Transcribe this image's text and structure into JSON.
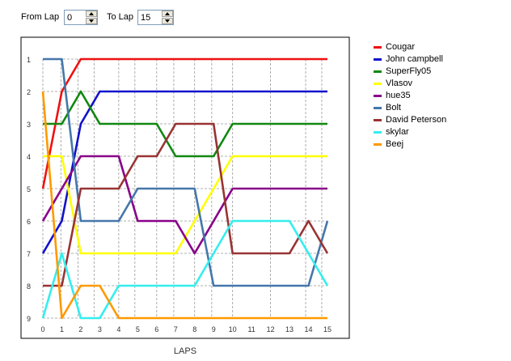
{
  "controls": {
    "from_label": "From Lap",
    "from_value": "0",
    "to_label": "To Lap",
    "to_value": "15"
  },
  "chart_data": {
    "type": "line",
    "xlabel": "LAPS",
    "ylabel": "",
    "x": [
      0,
      0.95,
      1.85,
      2.7,
      4,
      4.85,
      6,
      6.9,
      8,
      8.9,
      10,
      12,
      13.85,
      14.7
    ],
    "x_ticks": [
      0,
      1,
      2,
      3,
      4,
      5,
      6,
      7,
      8,
      9,
      10,
      11,
      12,
      13,
      14,
      15
    ],
    "y_ticks": [
      1,
      2,
      3,
      4,
      5,
      6,
      7,
      8,
      9
    ],
    "xlim": [
      0,
      15
    ],
    "ylim": [
      1,
      9
    ],
    "y_inverted": true,
    "grid": true,
    "legend_position": "right",
    "series": [
      {
        "name": "Cougar",
        "color": "#ee1111",
        "x": [
          0,
          1,
          2,
          15
        ],
        "values": [
          5,
          2,
          1,
          1
        ]
      },
      {
        "name": "John campbell",
        "color": "#1111cc",
        "x": [
          0,
          1,
          2,
          3,
          15
        ],
        "values": [
          7,
          6,
          3,
          2,
          2
        ]
      },
      {
        "name": "SuperFly05",
        "color": "#118811",
        "x": [
          0,
          1,
          2,
          3,
          6,
          7,
          9,
          10,
          15
        ],
        "values": [
          3,
          3,
          2,
          3,
          3,
          4,
          4,
          3,
          3
        ]
      },
      {
        "name": "Vlasov",
        "color": "#ffff00",
        "x": [
          0,
          1,
          2,
          7,
          10,
          15
        ],
        "values": [
          4,
          4,
          7,
          7,
          4,
          4
        ]
      },
      {
        "name": "hue35",
        "color": "#880088",
        "x": [
          0,
          2,
          4,
          5,
          7,
          8,
          10,
          15
        ],
        "values": [
          6,
          4,
          4,
          6,
          6,
          7,
          5,
          5
        ]
      },
      {
        "name": "Bolt",
        "color": "#4477aa",
        "x": [
          0,
          1,
          2,
          4,
          5,
          8,
          9,
          14,
          15
        ],
        "values": [
          1,
          1,
          6,
          6,
          5,
          5,
          8,
          8,
          6
        ]
      },
      {
        "name": "David Peterson",
        "color": "#993333",
        "x": [
          0,
          1,
          2,
          4,
          5,
          6,
          7,
          9,
          10,
          13,
          14,
          15
        ],
        "values": [
          8,
          8,
          5,
          5,
          4,
          4,
          3,
          3,
          7,
          7,
          6,
          7
        ]
      },
      {
        "name": "skylar",
        "color": "#33eeee",
        "x": [
          0,
          1,
          2,
          3,
          4,
          8,
          10,
          13,
          15
        ],
        "values": [
          9,
          7,
          9,
          9,
          8,
          8,
          6,
          6,
          8
        ]
      },
      {
        "name": "Beej",
        "color": "#ff9900",
        "x": [
          0,
          1,
          2,
          3,
          4,
          15
        ],
        "values": [
          2,
          9,
          8,
          8,
          9,
          9
        ]
      }
    ]
  }
}
